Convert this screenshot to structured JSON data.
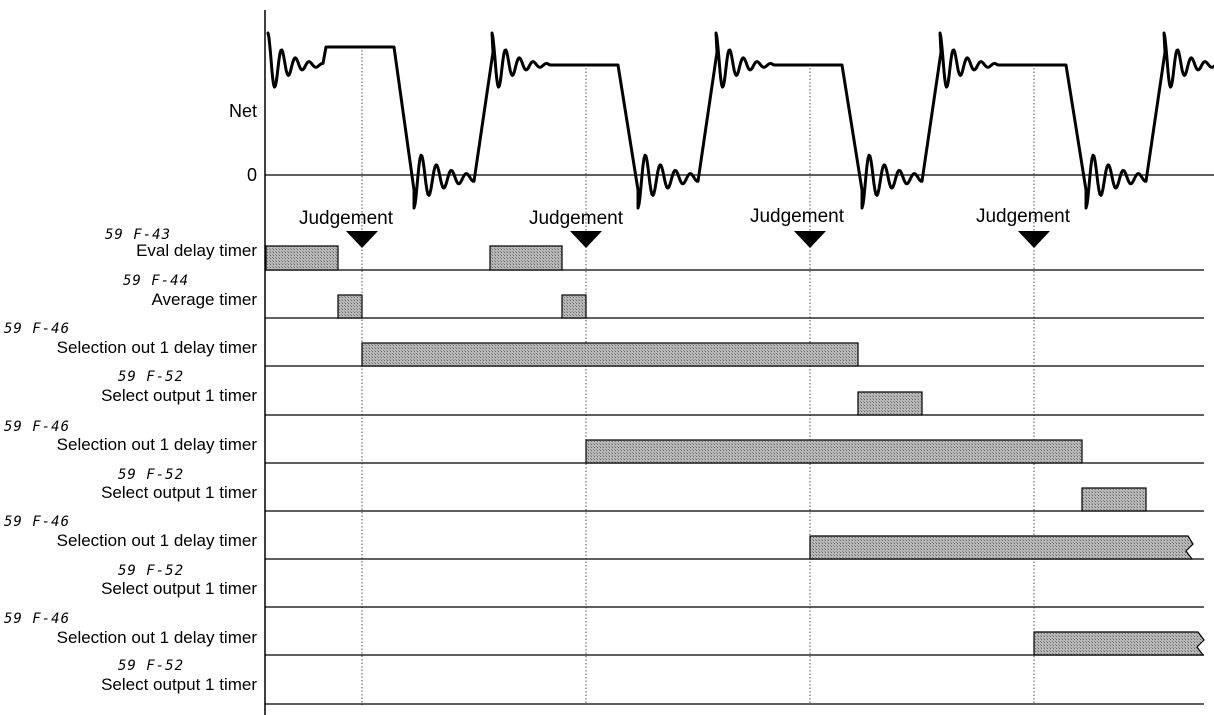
{
  "waveform": {
    "y_label": "Net",
    "zero_label": "0"
  },
  "judgement_label": "Judgement",
  "judgement_count": 4,
  "rows": [
    {
      "code": "59 F-43",
      "label": "Eval delay timer"
    },
    {
      "code": "59 F-44",
      "label": "Average timer"
    },
    {
      "code": "59 F-46",
      "label": "Selection out 1 delay timer"
    },
    {
      "code": "59 F-52",
      "label": "Select output 1 timer"
    },
    {
      "code": "59 F-46",
      "label": "Selection out 1 delay timer"
    },
    {
      "code": "59 F-52",
      "label": "Select output 1 timer"
    },
    {
      "code": "59 F-46",
      "label": "Selection out 1 delay timer"
    },
    {
      "code": "59 F-52",
      "label": "Select output 1 timer"
    },
    {
      "code": "59 F-46",
      "label": "Selection out 1 delay timer"
    },
    {
      "code": "59 F-52",
      "label": "Select output 1 timer"
    }
  ],
  "colors": {
    "line": "#000000",
    "bar_fill": "#a8a8a8",
    "guide": "#555555"
  }
}
